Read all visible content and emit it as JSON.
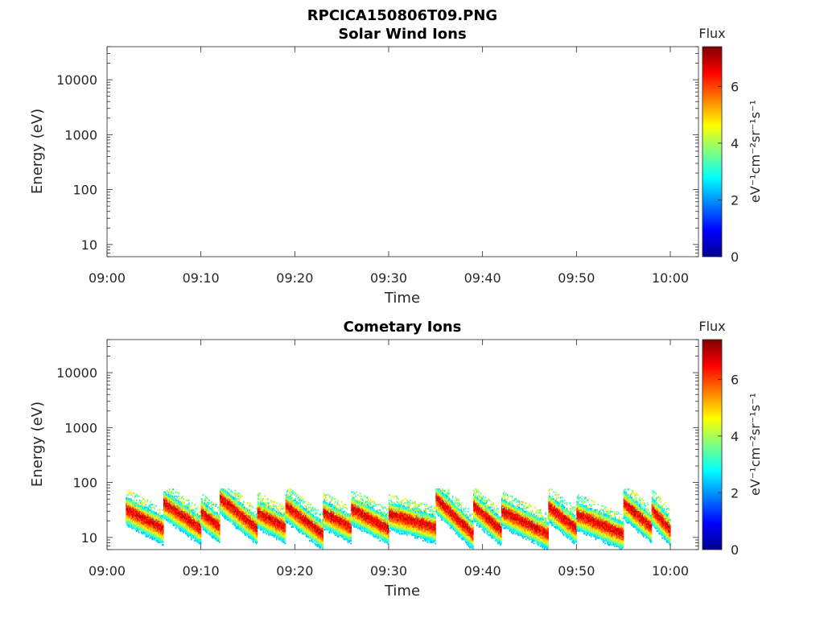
{
  "figure": {
    "title": "RPCICA150806T09.PNG"
  },
  "colormap": {
    "name": "jet",
    "stops": [
      "#00008f",
      "#0000ff",
      "#007fff",
      "#00ffff",
      "#7fff7f",
      "#ffff00",
      "#ff7f00",
      "#ff0000",
      "#7f0000"
    ]
  },
  "chart_data": [
    {
      "type": "heatmap",
      "title": "Solar Wind Ions",
      "xlabel": "Time",
      "ylabel": "Energy (eV)",
      "y_scale": "log",
      "xlim": [
        "09:00",
        "10:03"
      ],
      "ylim": [
        6,
        40000
      ],
      "x_ticks": [
        "09:00",
        "09:10",
        "09:20",
        "09:30",
        "09:40",
        "09:50",
        "10:00"
      ],
      "y_ticks": [
        "10",
        "100",
        "1000",
        "10000"
      ],
      "colorbar": {
        "title": "Flux",
        "label": "eV⁻¹cm⁻²sr⁻¹s⁻¹",
        "ticks": [
          "0",
          "2",
          "4",
          "6"
        ],
        "range": [
          0,
          7.4
        ]
      },
      "bursts": []
    },
    {
      "type": "heatmap",
      "title": "Cometary Ions",
      "xlabel": "Time",
      "ylabel": "Energy (eV)",
      "y_scale": "log",
      "xlim": [
        "09:00",
        "10:03"
      ],
      "ylim": [
        6,
        40000
      ],
      "x_ticks": [
        "09:00",
        "09:10",
        "09:20",
        "09:30",
        "09:40",
        "09:50",
        "10:00"
      ],
      "y_ticks": [
        "10",
        "100",
        "1000",
        "10000"
      ],
      "colorbar": {
        "title": "Flux",
        "label": "eV⁻¹cm⁻²sr⁻¹s⁻¹",
        "ticks": [
          "0",
          "2",
          "4",
          "6"
        ],
        "range": [
          0,
          7.4
        ]
      },
      "data_start": "09:02",
      "data_end": "10:00",
      "bursts": [
        {
          "start": "09:02",
          "end": "09:06",
          "e_start": 34,
          "e_end": 15
        },
        {
          "start": "09:06",
          "end": "09:10",
          "e_start": 45,
          "e_end": 15
        },
        {
          "start": "09:10",
          "end": "09:12",
          "e_start": 30,
          "e_end": 16
        },
        {
          "start": "09:12",
          "end": "09:16",
          "e_start": 55,
          "e_end": 15
        },
        {
          "start": "09:16",
          "end": "09:19",
          "e_start": 30,
          "e_end": 16
        },
        {
          "start": "09:19",
          "end": "09:23",
          "e_start": 40,
          "e_end": 12
        },
        {
          "start": "09:23",
          "end": "09:26",
          "e_start": 30,
          "e_end": 16
        },
        {
          "start": "09:26",
          "end": "09:30",
          "e_start": 35,
          "e_end": 15
        },
        {
          "start": "09:30",
          "end": "09:35",
          "e_start": 28,
          "e_end": 16
        },
        {
          "start": "09:35",
          "end": "09:39",
          "e_start": 55,
          "e_end": 12
        },
        {
          "start": "09:39",
          "end": "09:42",
          "e_start": 40,
          "e_end": 14
        },
        {
          "start": "09:42",
          "end": "09:47",
          "e_start": 32,
          "e_end": 12
        },
        {
          "start": "09:47",
          "end": "09:50",
          "e_start": 38,
          "e_end": 15
        },
        {
          "start": "09:50",
          "end": "09:55",
          "e_start": 28,
          "e_end": 12
        },
        {
          "start": "09:55",
          "end": "09:58",
          "e_start": 45,
          "e_end": 16
        },
        {
          "start": "09:58",
          "end": "10:00",
          "e_start": 35,
          "e_end": 14
        }
      ]
    }
  ]
}
